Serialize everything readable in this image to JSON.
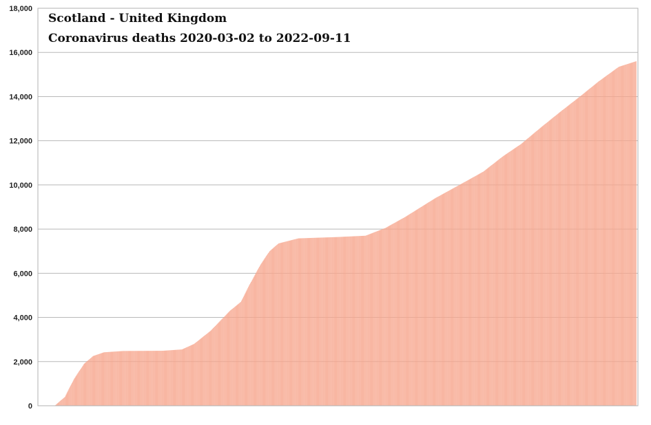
{
  "chart_data": {
    "type": "bar",
    "title": "Scotland - United Kingdom",
    "subtitle": "Coronavirus deaths 2020-03-02 to 2022-09-11",
    "xlabel": "",
    "ylabel": "",
    "x_start": "2020-03-02",
    "x_end": "2022-09-11",
    "ylim": [
      0,
      18000
    ],
    "yticks": [
      "0",
      "2,000",
      "4,000",
      "6,000",
      "8,000",
      "10,000",
      "12,000",
      "14,000",
      "16,000",
      "18,000"
    ],
    "grid": true,
    "legend": "none",
    "bar_color": "#f7a68d",
    "series": [
      {
        "points": [
          {
            "x": "2020-03-02",
            "y": 0
          },
          {
            "x": "2020-03-16",
            "y": 0
          },
          {
            "x": "2020-04-01",
            "y": 400
          },
          {
            "x": "2020-04-15",
            "y": 1200
          },
          {
            "x": "2020-05-01",
            "y": 1900
          },
          {
            "x": "2020-05-15",
            "y": 2250
          },
          {
            "x": "2020-06-01",
            "y": 2420
          },
          {
            "x": "2020-07-01",
            "y": 2480
          },
          {
            "x": "2020-09-01",
            "y": 2490
          },
          {
            "x": "2020-10-01",
            "y": 2550
          },
          {
            "x": "2020-10-20",
            "y": 2800
          },
          {
            "x": "2020-11-15",
            "y": 3400
          },
          {
            "x": "2020-12-15",
            "y": 4300
          },
          {
            "x": "2021-01-01",
            "y": 4700
          },
          {
            "x": "2021-01-15",
            "y": 5500
          },
          {
            "x": "2021-02-01",
            "y": 6400
          },
          {
            "x": "2021-02-15",
            "y": 7000
          },
          {
            "x": "2021-03-01",
            "y": 7350
          },
          {
            "x": "2021-04-01",
            "y": 7580
          },
          {
            "x": "2021-06-01",
            "y": 7640
          },
          {
            "x": "2021-07-15",
            "y": 7700
          },
          {
            "x": "2021-08-15",
            "y": 8050
          },
          {
            "x": "2021-09-15",
            "y": 8550
          },
          {
            "x": "2021-11-01",
            "y": 9400
          },
          {
            "x": "2021-12-15",
            "y": 10100
          },
          {
            "x": "2022-01-15",
            "y": 10600
          },
          {
            "x": "2022-02-15",
            "y": 11300
          },
          {
            "x": "2022-03-15",
            "y": 11850
          },
          {
            "x": "2022-04-15",
            "y": 12600
          },
          {
            "x": "2022-05-15",
            "y": 13300
          },
          {
            "x": "2022-06-15",
            "y": 14000
          },
          {
            "x": "2022-07-15",
            "y": 14700
          },
          {
            "x": "2022-08-15",
            "y": 15350
          },
          {
            "x": "2022-09-11",
            "y": 15600
          }
        ]
      }
    ]
  }
}
